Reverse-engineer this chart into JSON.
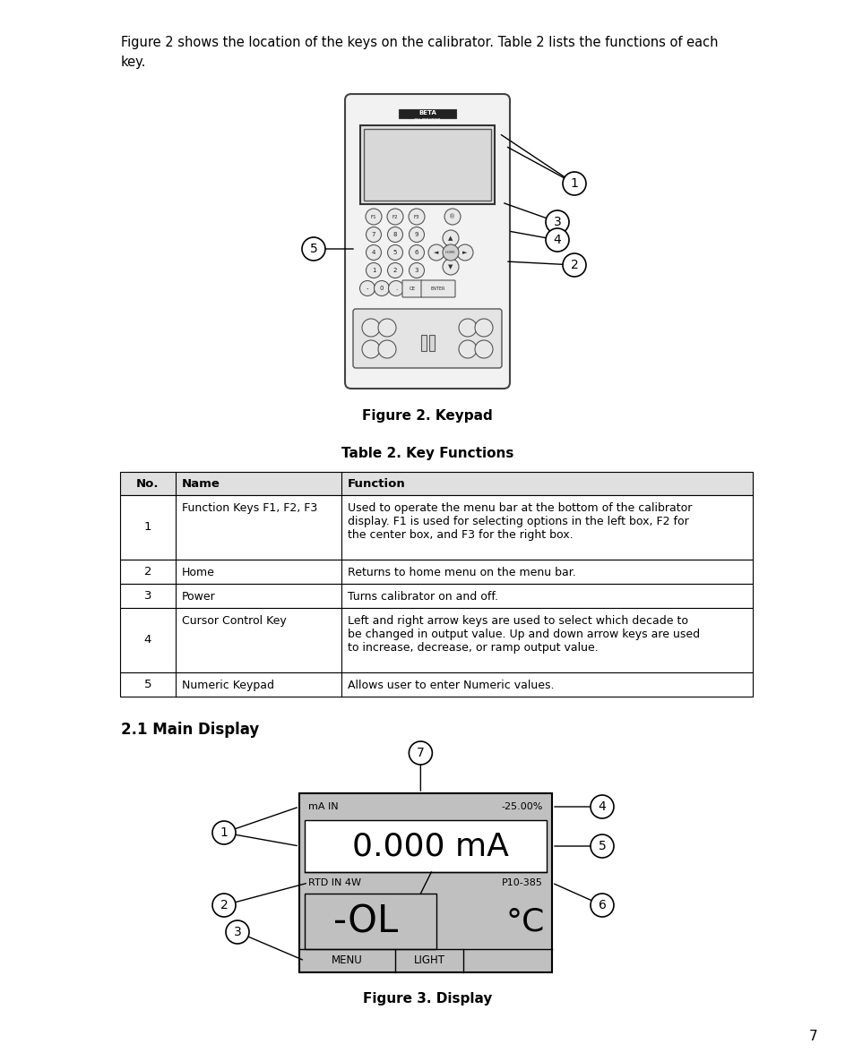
{
  "bg_color": "#ffffff",
  "text_color": "#000000",
  "intro_line1": "Figure 2 shows the location of the keys on the calibrator. Table 2 lists the functions of each",
  "intro_line2": "key.",
  "figure2_caption": "Figure 2. Keypad",
  "table_title": "Table 2. Key Functions",
  "table_headers": [
    "No.",
    "Name",
    "Function"
  ],
  "table_row_nos": [
    "1",
    "2",
    "3",
    "4",
    "5"
  ],
  "table_row_names": [
    "Function Keys F1, F2, F3",
    "Home",
    "Power",
    "Cursor Control Key",
    "Numeric Keypad"
  ],
  "table_row_funcs": [
    "Used to operate the menu bar at the bottom of the calibrator\ndisplay. F1 is used for selecting options in the left box, F2 for\nthe center box, and F3 for the right box.",
    "Returns to home menu on the menu bar.",
    "Turns calibrator on and off.",
    "Left and right arrow keys are used to select which decade to\nbe changed in output value. Up and down arrow keys are used\nto increase, decrease, or ramp output value.",
    "Allows user to enter Numeric values."
  ],
  "section_title": "2.1 Main Display",
  "figure3_caption": "Figure 3. Display",
  "page_number": "7",
  "display_bg": "#c0c0c0",
  "keypad_body_color": "#f2f2f2",
  "keypad_screen_color": "#e0e0e0",
  "keypad_screen_inner": "#d8d8d8",
  "btn_color": "#e8e8e8",
  "tbl_header_bg": "#e0e0e0"
}
